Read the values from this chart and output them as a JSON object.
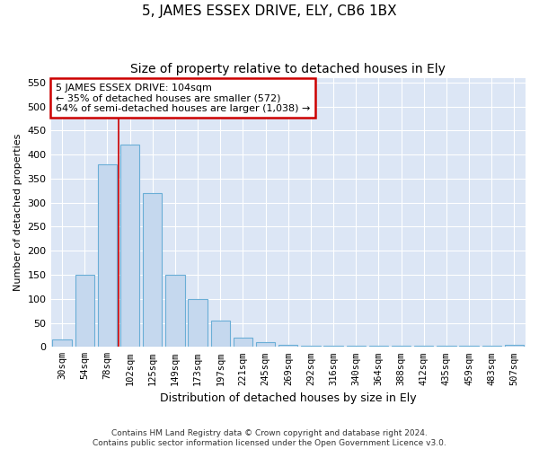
{
  "title": "5, JAMES ESSEX DRIVE, ELY, CB6 1BX",
  "subtitle": "Size of property relative to detached houses in Ely",
  "xlabel": "Distribution of detached houses by size in Ely",
  "ylabel": "Number of detached properties",
  "footnote": "Contains HM Land Registry data © Crown copyright and database right 2024.\nContains public sector information licensed under the Open Government Licence v3.0.",
  "bar_labels": [
    "30sqm",
    "54sqm",
    "78sqm",
    "102sqm",
    "125sqm",
    "149sqm",
    "173sqm",
    "197sqm",
    "221sqm",
    "245sqm",
    "269sqm",
    "292sqm",
    "316sqm",
    "340sqm",
    "364sqm",
    "388sqm",
    "412sqm",
    "435sqm",
    "459sqm",
    "483sqm",
    "507sqm"
  ],
  "bar_values": [
    15,
    150,
    380,
    420,
    320,
    150,
    100,
    55,
    20,
    10,
    5,
    3,
    3,
    3,
    3,
    3,
    3,
    3,
    3,
    3,
    5
  ],
  "bar_color": "#c5d8ee",
  "bar_edge_color": "#6aaed6",
  "property_line_x": 2.5,
  "annotation_text": "5 JAMES ESSEX DRIVE: 104sqm\n← 35% of detached houses are smaller (572)\n64% of semi-detached houses are larger (1,038) →",
  "annotation_box_color": "#ffffff",
  "annotation_box_edge": "#cc0000",
  "vline_color": "#cc0000",
  "ylim": [
    0,
    560
  ],
  "yticks": [
    0,
    50,
    100,
    150,
    200,
    250,
    300,
    350,
    400,
    450,
    500,
    550
  ],
  "plot_bg_color": "#dce6f5",
  "fig_bg_color": "#ffffff",
  "title_fontsize": 11,
  "subtitle_fontsize": 10,
  "grid_color": "#ffffff"
}
